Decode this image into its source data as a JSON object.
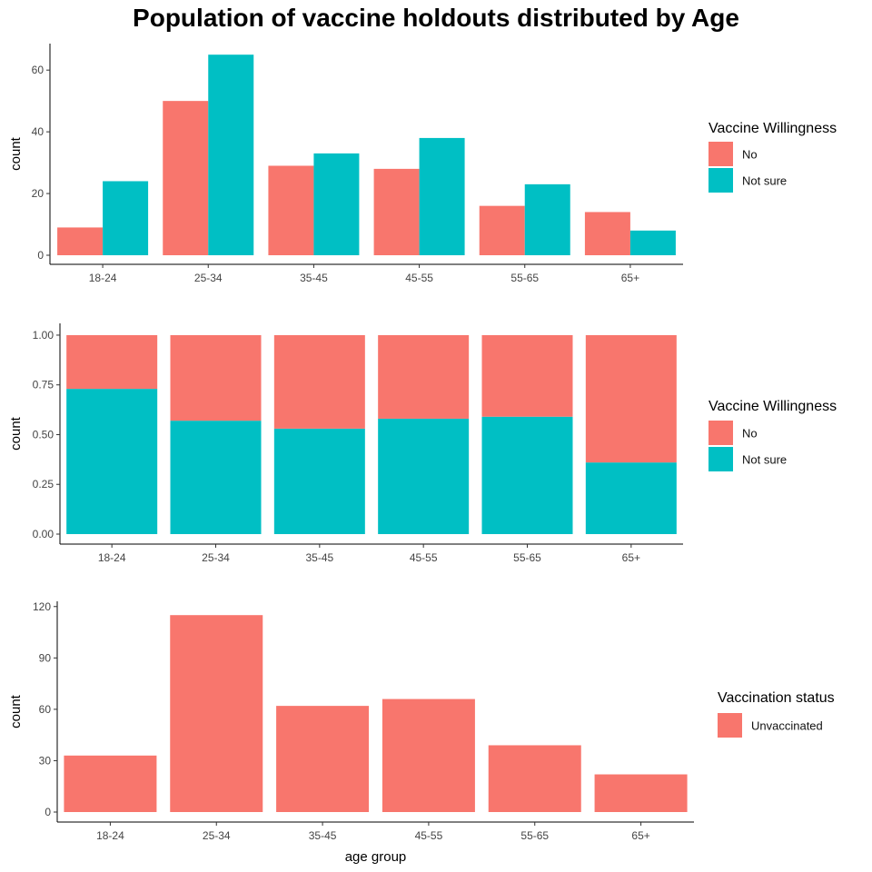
{
  "title": "Population of vaccine holdouts distributed by Age",
  "colors": {
    "no": "#F8766D",
    "not_sure": "#00BFC4",
    "unvaccinated": "#F8766D",
    "axis": "#000000"
  },
  "chart_data": [
    {
      "type": "bar",
      "position": "dodge",
      "categories": [
        "18-24",
        "25-34",
        "35-45",
        "45-55",
        "55-65",
        "65+"
      ],
      "ylabel": "count",
      "xlabel": "",
      "ylim": [
        0,
        68
      ],
      "yticks": [
        0,
        20,
        40,
        60
      ],
      "yticklabels": [
        "0",
        "20",
        "40",
        "60"
      ],
      "legend_title": "Vaccine Willingness",
      "legend_position": "right",
      "grid": false,
      "series": [
        {
          "name": "No",
          "color": "#F8766D",
          "values": [
            9,
            50,
            29,
            28,
            16,
            14
          ]
        },
        {
          "name": "Not sure",
          "color": "#00BFC4",
          "values": [
            24,
            65,
            33,
            38,
            23,
            8
          ]
        }
      ]
    },
    {
      "type": "bar",
      "position": "fill",
      "categories": [
        "18-24",
        "25-34",
        "35-45",
        "45-55",
        "55-65",
        "65+"
      ],
      "ylabel": "count",
      "xlabel": "",
      "ylim": [
        0,
        1.05
      ],
      "yticks": [
        0,
        0.25,
        0.5,
        0.75,
        1
      ],
      "yticklabels": [
        "0.00",
        "0.25",
        "0.50",
        "0.75",
        "1.00"
      ],
      "legend_title": "Vaccine Willingness",
      "legend_position": "right",
      "grid": false,
      "series": [
        {
          "name": "No",
          "color": "#F8766D",
          "values": [
            0.27,
            0.43,
            0.47,
            0.42,
            0.41,
            0.64
          ]
        },
        {
          "name": "Not sure",
          "color": "#00BFC4",
          "values": [
            0.73,
            0.57,
            0.53,
            0.58,
            0.59,
            0.36
          ]
        }
      ]
    },
    {
      "type": "bar",
      "position": "stack",
      "categories": [
        "18-24",
        "25-34",
        "35-45",
        "45-55",
        "55-65",
        "65+"
      ],
      "ylabel": "count",
      "xlabel": "age group",
      "ylim": [
        0,
        122
      ],
      "yticks": [
        0,
        30,
        60,
        90,
        120
      ],
      "yticklabels": [
        "0",
        "30",
        "60",
        "90",
        "120"
      ],
      "legend_title": "Vaccination status",
      "legend_position": "right",
      "grid": false,
      "series": [
        {
          "name": "Unvaccinated",
          "color": "#F8766D",
          "values": [
            33,
            115,
            62,
            66,
            39,
            22
          ]
        }
      ]
    }
  ]
}
